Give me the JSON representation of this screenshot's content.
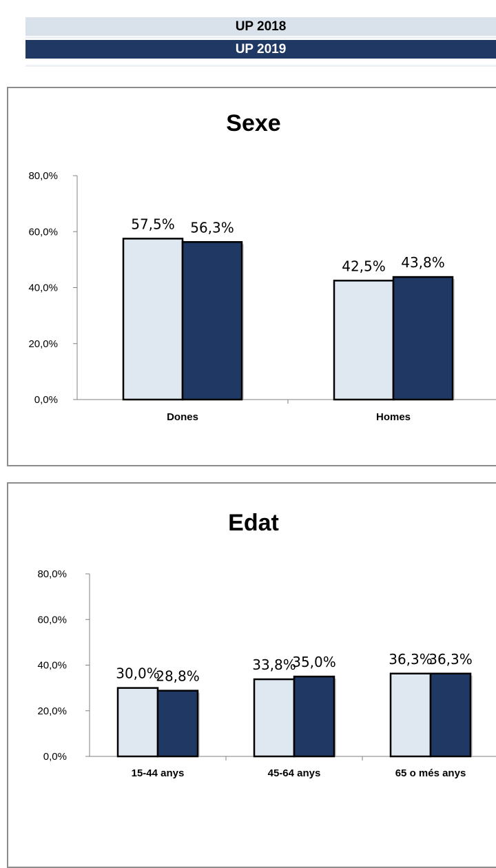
{
  "legend": {
    "label_2018": "UP 2018",
    "label_2019": "UP 2019"
  },
  "colors": {
    "up2018": "#dfe7f0",
    "up2019": "#1f3864",
    "bar_outline": "#000000"
  },
  "chart_data": [
    {
      "type": "bar",
      "title": "Sexe",
      "categories": [
        "Dones",
        "Homes"
      ],
      "series": [
        {
          "name": "UP 2018",
          "values": [
            57.5,
            42.5
          ],
          "labels": [
            "57,5%",
            "42,5%"
          ]
        },
        {
          "name": "UP 2019",
          "values": [
            56.3,
            43.8
          ],
          "labels": [
            "56,3%",
            "43,8%"
          ]
        }
      ],
      "ylim": [
        0,
        80
      ],
      "yticks": [
        "0,0%",
        "20,0%",
        "40,0%",
        "60,0%",
        "80,0%"
      ],
      "xlabel": "",
      "ylabel": "",
      "grid": false
    },
    {
      "type": "bar",
      "title": "Edat",
      "categories": [
        "15-44 anys",
        "45-64 anys",
        "65 o més anys"
      ],
      "series": [
        {
          "name": "UP 2018",
          "values": [
            30.0,
            33.8,
            36.3
          ],
          "labels": [
            "30,0%",
            "33,8%",
            "36,3%"
          ]
        },
        {
          "name": "UP 2019",
          "values": [
            28.8,
            35.0,
            36.3
          ],
          "labels": [
            "28,8%",
            "35,0%",
            "36,3%"
          ]
        }
      ],
      "ylim": [
        0,
        80
      ],
      "yticks": [
        "0,0%",
        "20,0%",
        "40,0%",
        "60,0%",
        "80,0%"
      ],
      "xlabel": "",
      "ylabel": "",
      "grid": false
    }
  ]
}
